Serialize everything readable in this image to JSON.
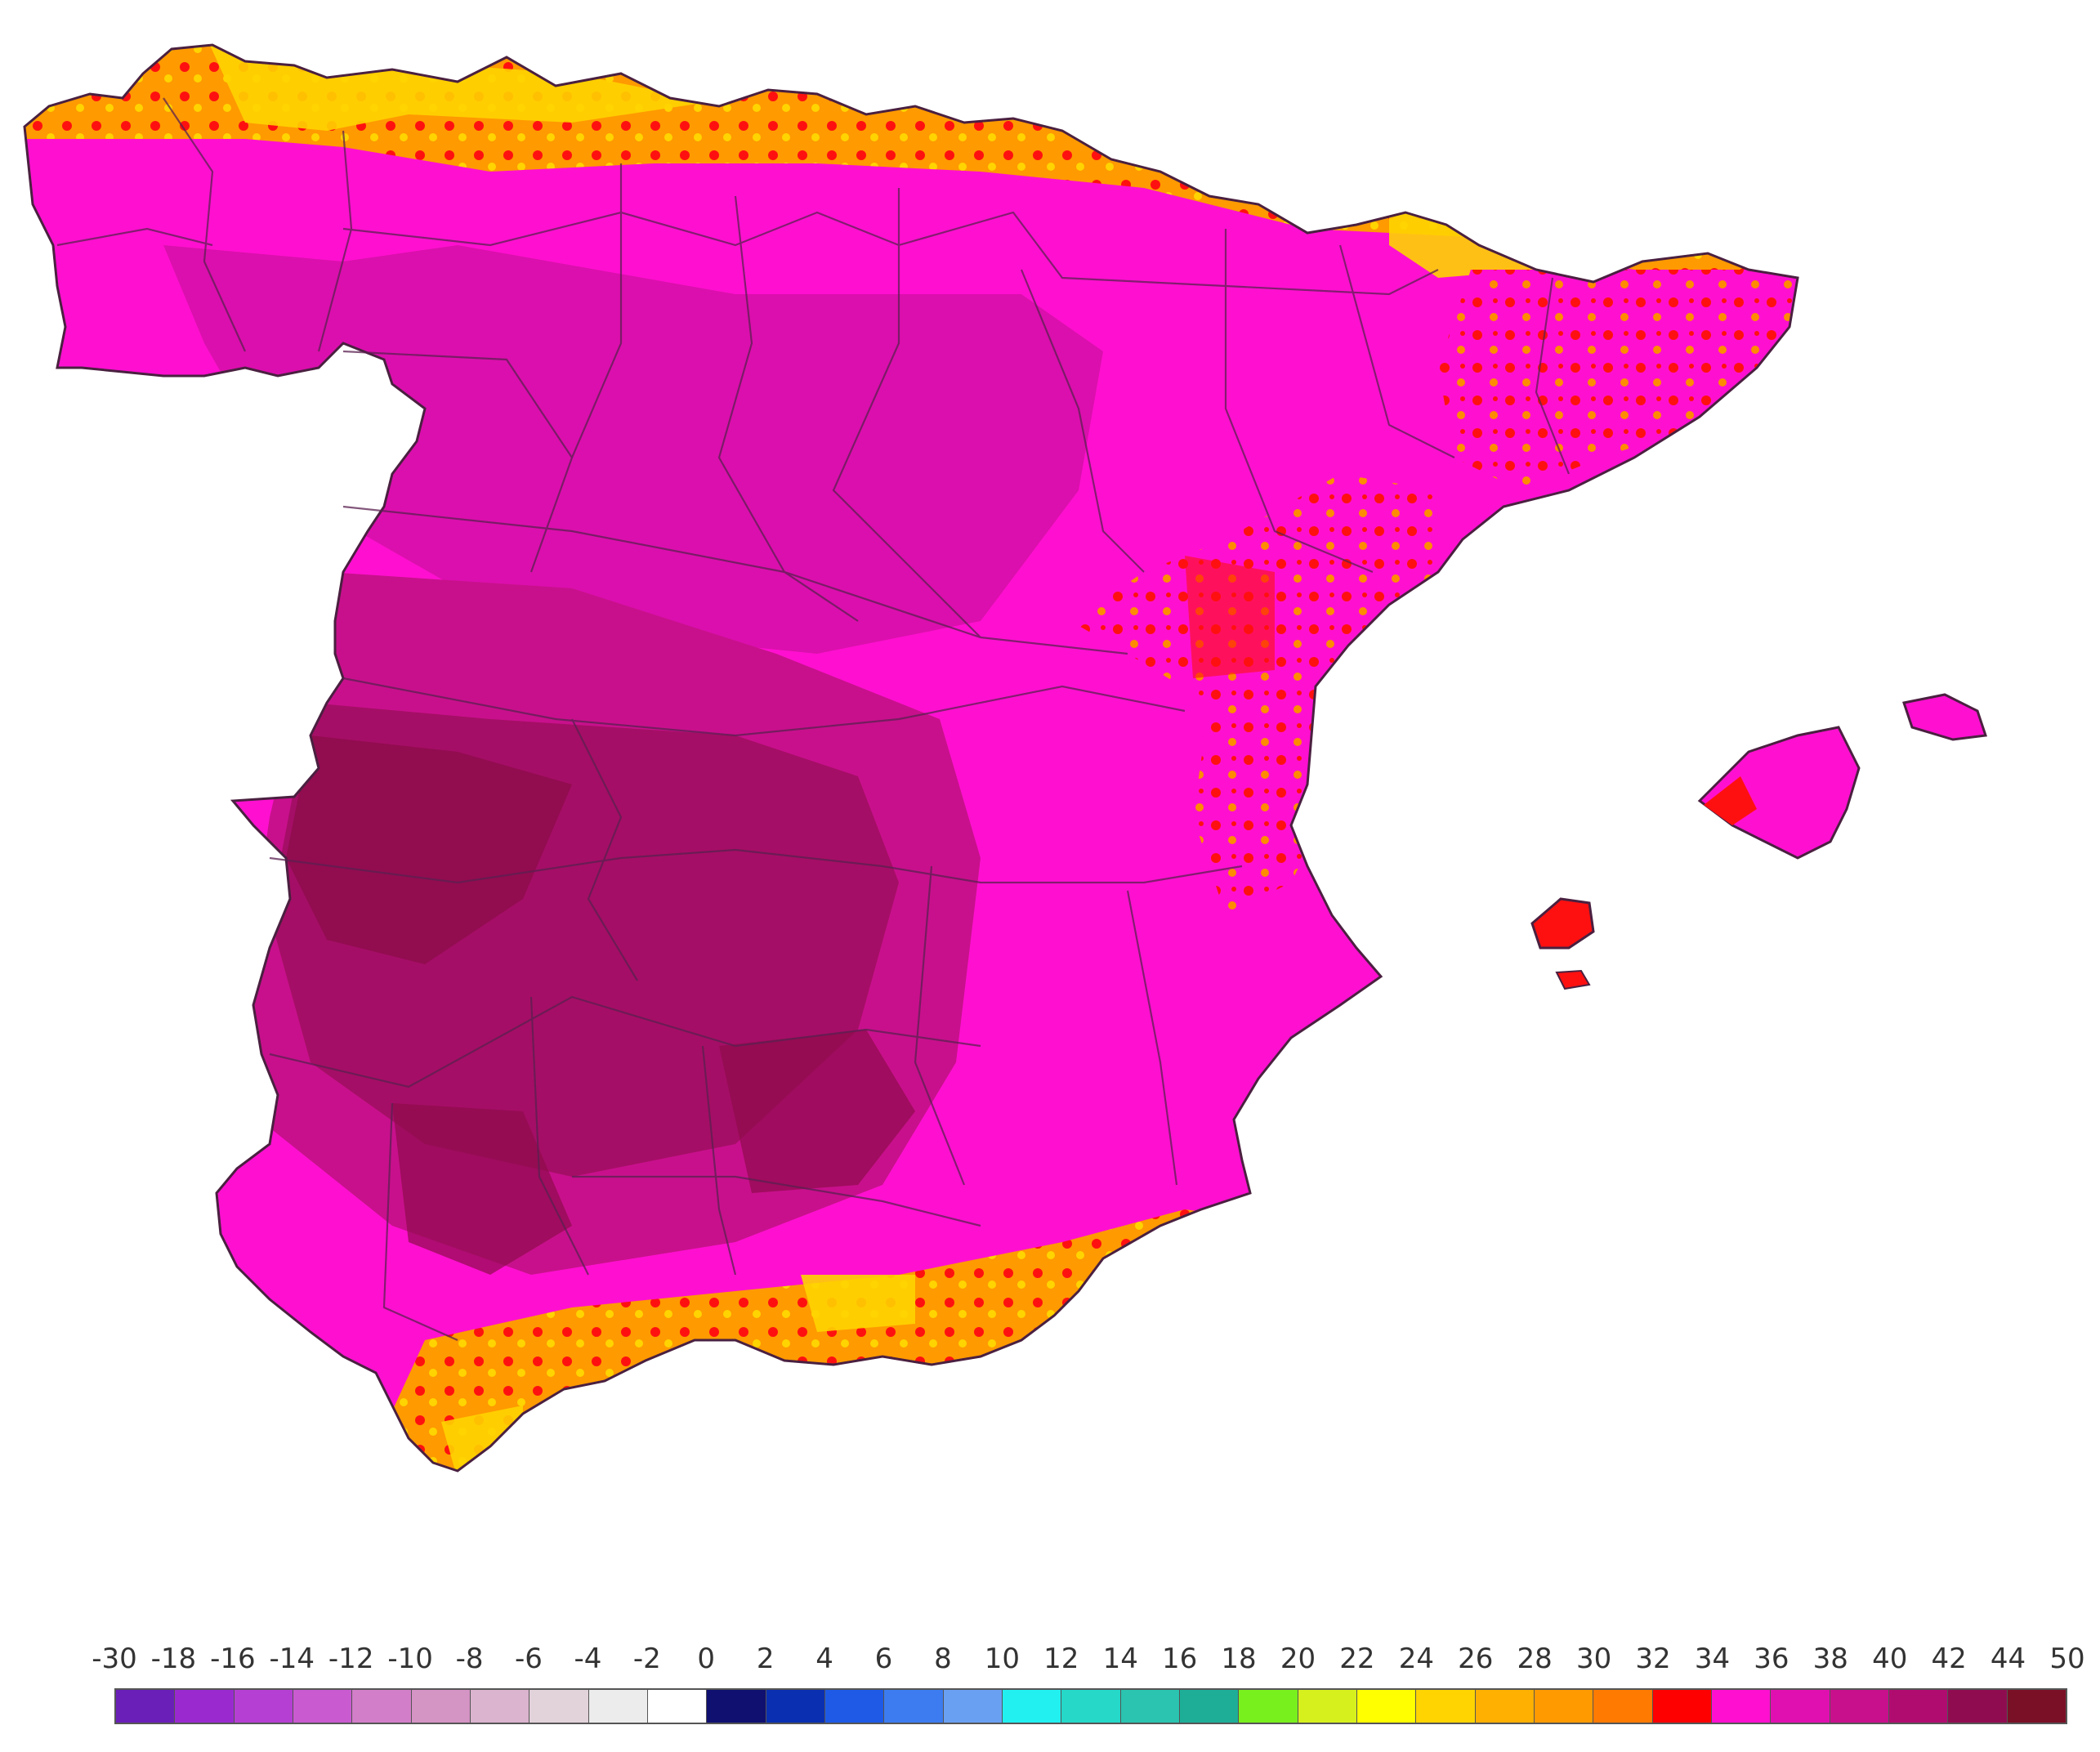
{
  "legend": {
    "labels": [
      "-30",
      "-18",
      "-16",
      "-14",
      "-12",
      "-10",
      "-8",
      "-6",
      "-4",
      "-2",
      "0",
      "2",
      "4",
      "6",
      "8",
      "10",
      "12",
      "14",
      "16",
      "18",
      "20",
      "22",
      "24",
      "26",
      "28",
      "30",
      "32",
      "34",
      "36",
      "38",
      "40",
      "42",
      "44",
      "50"
    ],
    "colors": [
      "#6a1fb8",
      "#9a2ad0",
      "#b63fd3",
      "#c95ad0",
      "#d27ec8",
      "#d494c4",
      "#dbb4cf",
      "#e2d2da",
      "#ececec",
      "#ffffff",
      "#101070",
      "#0a2fb0",
      "#1e5ae6",
      "#3c7cf0",
      "#6aa0f2",
      "#22f0f0",
      "#25d8c8",
      "#2ac4b0",
      "#1eae98",
      "#78f01e",
      "#d6f01e",
      "#ffff00",
      "#ffd400",
      "#ffb000",
      "#ff9a00",
      "#ff7a00",
      "#ff0000",
      "#ff10d0",
      "#e010b0",
      "#c8108c",
      "#b00c70",
      "#900c50",
      "#7a1026"
    ]
  },
  "map": {
    "region_colors": {
      "coast_cool": "#ffd400",
      "coast_warm": "#ff8c00",
      "hot": "#ff1010",
      "very_hot": "#ff10d0",
      "extreme": "#c8108c",
      "max": "#900c50"
    }
  }
}
